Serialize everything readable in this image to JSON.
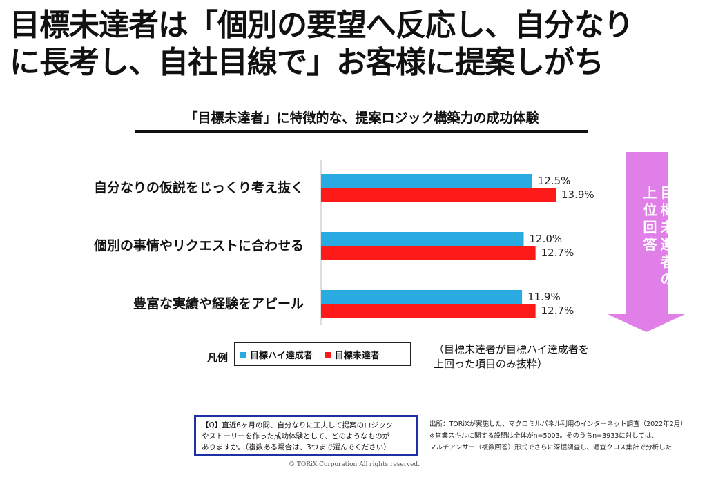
{
  "headline": {
    "line1": "目標未達者は「個別の要望へ反応し、自分なり",
    "line2": "に長考し、自社目線で」お客様に提案しがち"
  },
  "chart_data": {
    "type": "bar",
    "orientation": "horizontal",
    "title": "「目標未達者」に特徴的な、提案ロジック構築力の成功体験",
    "categories": [
      "自分なりの仮説をじっくり考え抜く",
      "個別の事情やリクエストに合わせる",
      "豊富な実績や経験をアピール"
    ],
    "series": [
      {
        "name": "目標ハイ達成者",
        "color": "#29abe2",
        "values": [
          12.5,
          12.0,
          11.9
        ],
        "labels": [
          "12.5%",
          "12.0%",
          "11.9%"
        ]
      },
      {
        "name": "目標未達者",
        "color": "#ff1a1a",
        "values": [
          13.9,
          12.7,
          12.7
        ],
        "labels": [
          "13.9%",
          "12.7%",
          "12.7%"
        ]
      }
    ],
    "xlim": [
      0,
      16
    ],
    "grid": false
  },
  "legend": {
    "title": "凡例",
    "note_line1": "（目標未達者が目標ハイ達成者を",
    "note_line2": "上回った項目のみ抜粋）"
  },
  "arrow": {
    "color": "#e07fe8",
    "col_right": [
      "目",
      "標",
      "未",
      "達",
      "者",
      "の"
    ],
    "col_left": [
      "上",
      "位",
      "回",
      "答"
    ]
  },
  "question": {
    "line1": "【Q】直近6ヶ月の間、自分なりに工夫して提案のロジック",
    "line2": "やストーリーを作った成功体験として、どのようなものが",
    "line3": "ありますか。（複数ある場合は、3つまで選んでください）"
  },
  "source": {
    "line1": "出所：TORiXが実施した、マクロミルパネル利用のインターネット調査（2022年2月）",
    "line2": "※営業スキルに関する設問は全体がn=5003。そのうちn=3933に対しては、",
    "line3": "マルチアンサー（複数回答）形式でさらに深掘調査し、適宜クロス集計で分析した"
  },
  "copyright": "© TORiX Corporation All rights reserved."
}
